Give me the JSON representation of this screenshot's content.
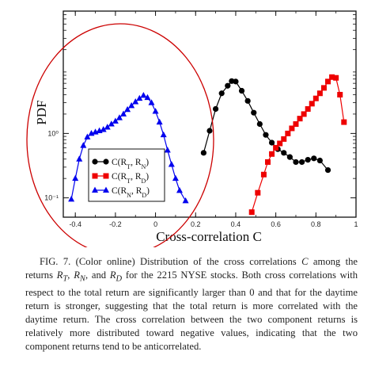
{
  "figure": {
    "chart_data": {
      "type": "scatter",
      "xlabel": "Cross-correlation C",
      "ylabel": "PDF",
      "xlim": [
        -0.46,
        1.0
      ],
      "ylim_log10": [
        -1.3,
        1.9
      ],
      "yscale": "log",
      "x_ticks": [
        {
          "value": -0.4,
          "label": "-0.4"
        },
        {
          "value": -0.2,
          "label": "-0.2"
        },
        {
          "value": 0.0,
          "label": "0"
        },
        {
          "value": 0.2,
          "label": "0.2"
        },
        {
          "value": 0.4,
          "label": "0.4"
        },
        {
          "value": 0.6,
          "label": "0.6"
        },
        {
          "value": 0.8,
          "label": "0.8"
        },
        {
          "value": 1.0,
          "label": "1"
        }
      ],
      "y_ticks": [
        {
          "value": 1,
          "label": "10⁰"
        },
        {
          "value": 0.1,
          "label": "10⁻¹"
        }
      ],
      "legend_position": "bottom-left",
      "series": [
        {
          "name": "C(R_T, R_N)",
          "legend_main": "C(R",
          "legend_sub1": "T",
          "legend_sep": ", R",
          "legend_sub2": "N",
          "legend_end": ")",
          "color": "#000000",
          "marker": "circle",
          "points": [
            [
              0.24,
              0.5
            ],
            [
              0.27,
              1.1
            ],
            [
              0.3,
              2.4
            ],
            [
              0.33,
              4.2
            ],
            [
              0.36,
              5.5
            ],
            [
              0.38,
              6.5
            ],
            [
              0.4,
              6.4
            ],
            [
              0.43,
              4.6
            ],
            [
              0.46,
              3.2
            ],
            [
              0.49,
              2.1
            ],
            [
              0.52,
              1.4
            ],
            [
              0.55,
              0.95
            ],
            [
              0.58,
              0.72
            ],
            [
              0.61,
              0.57
            ],
            [
              0.64,
              0.5
            ],
            [
              0.67,
              0.43
            ],
            [
              0.7,
              0.36
            ],
            [
              0.73,
              0.36
            ],
            [
              0.76,
              0.39
            ],
            [
              0.79,
              0.41
            ],
            [
              0.82,
              0.38
            ],
            [
              0.86,
              0.27
            ]
          ]
        },
        {
          "name": "C(R_T, R_D)",
          "legend_main": "C(R",
          "legend_sub1": "T",
          "legend_sep": ", R",
          "legend_sub2": "D",
          "legend_end": ")",
          "color": "#ee0000",
          "marker": "square",
          "points": [
            [
              0.48,
              0.06
            ],
            [
              0.51,
              0.12
            ],
            [
              0.54,
              0.23
            ],
            [
              0.56,
              0.36
            ],
            [
              0.58,
              0.48
            ],
            [
              0.6,
              0.6
            ],
            [
              0.62,
              0.7
            ],
            [
              0.64,
              0.82
            ],
            [
              0.66,
              1.0
            ],
            [
              0.68,
              1.2
            ],
            [
              0.7,
              1.4
            ],
            [
              0.72,
              1.7
            ],
            [
              0.74,
              2.0
            ],
            [
              0.76,
              2.4
            ],
            [
              0.78,
              2.9
            ],
            [
              0.8,
              3.5
            ],
            [
              0.82,
              4.2
            ],
            [
              0.84,
              5.1
            ],
            [
              0.86,
              6.4
            ],
            [
              0.88,
              7.5
            ],
            [
              0.9,
              7.3
            ],
            [
              0.92,
              4.0
            ],
            [
              0.94,
              1.5
            ]
          ]
        },
        {
          "name": "C(R_N, R_D)",
          "legend_main": "C(R",
          "legend_sub1": "N",
          "legend_sep": ", R",
          "legend_sub2": "D",
          "legend_end": ")",
          "color": "#0000ee",
          "marker": "triangle",
          "points": [
            [
              -0.42,
              0.095
            ],
            [
              -0.4,
              0.2
            ],
            [
              -0.38,
              0.4
            ],
            [
              -0.36,
              0.65
            ],
            [
              -0.34,
              0.88
            ],
            [
              -0.32,
              1.0
            ],
            [
              -0.3,
              1.05
            ],
            [
              -0.28,
              1.1
            ],
            [
              -0.26,
              1.15
            ],
            [
              -0.24,
              1.25
            ],
            [
              -0.22,
              1.4
            ],
            [
              -0.2,
              1.55
            ],
            [
              -0.18,
              1.75
            ],
            [
              -0.16,
              2.0
            ],
            [
              -0.14,
              2.35
            ],
            [
              -0.12,
              2.7
            ],
            [
              -0.1,
              3.1
            ],
            [
              -0.08,
              3.5
            ],
            [
              -0.06,
              3.9
            ],
            [
              -0.04,
              3.6
            ],
            [
              -0.02,
              3.0
            ],
            [
              0.0,
              2.2
            ],
            [
              0.02,
              1.5
            ],
            [
              0.04,
              0.95
            ],
            [
              0.06,
              0.55
            ],
            [
              0.08,
              0.33
            ],
            [
              0.1,
              0.2
            ],
            [
              0.12,
              0.13
            ],
            [
              0.15,
              0.09
            ]
          ]
        }
      ]
    }
  },
  "caption": {
    "text": "FIG. 7. (Color online) Distribution of the cross correlations C among the returns R_T, R_N, and R_D for the 2215 NYSE stocks. Both cross correlations with respect to the total return are significantly larger than 0 and that for the daytime return is stronger, suggesting that the total return is more correlated with the daytime return. The cross correlation between the two component returns is relatively more distributed toward negative values, indicating that the two component returns tend to be anticorrelated.",
    "p1": "FIG. 7. (Color online) Distribution of the cross correlations ",
    "c_var": "C",
    "p2": " among the returns ",
    "r": "R",
    "sub_t": "T",
    "sub_n": "N",
    "sub_d": "D",
    "comma": ", ",
    "and": ", and ",
    "p3": " for the 2215 NYSE stocks. Both cross correlations with respect to the total return are significantly larger than 0 and that for the daytime return is stronger, suggesting that the total return is more correlated with the daytime return. The cross correlation between the two component returns is relatively more distributed toward negative values, indicating that the two component returns tend to be anticorrelated."
  },
  "annotation": {
    "ellipse_color": "#cc0000"
  }
}
